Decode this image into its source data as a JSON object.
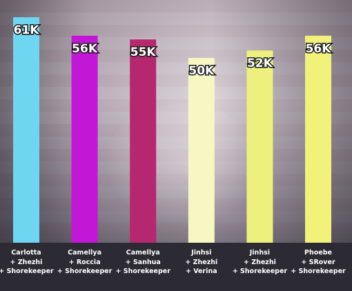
{
  "chart_data": {
    "type": "bar",
    "categories": [
      [
        "Carlotta",
        "+ Zhezhi",
        "+ Shorekeeper"
      ],
      [
        "Camellya",
        "+ Roccia",
        "+ Shorekeeper"
      ],
      [
        "Camellya",
        "+ Sanhua",
        "+ Shorekeeper"
      ],
      [
        "Jinhsi",
        "+ Zhezhi",
        "+ Verina"
      ],
      [
        "Jinhsi",
        "+ Zhezhi",
        "+ Shorekeeper"
      ],
      [
        "Phoebe",
        "+ SRover",
        "+ Shorekeeper"
      ]
    ],
    "values": [
      61,
      56,
      55,
      50,
      52,
      56
    ],
    "data_labels": [
      "61K",
      "56K",
      "55K",
      "50K",
      "52K",
      "56K"
    ],
    "colors": [
      "#6fd6f2",
      "#c217d6",
      "#b5276f",
      "#f6f7c2",
      "#eef07d",
      "#f2f27a"
    ],
    "title": "",
    "xlabel": "",
    "ylabel": "",
    "ylim": [
      0,
      61
    ],
    "grid": false,
    "legend": "none"
  }
}
